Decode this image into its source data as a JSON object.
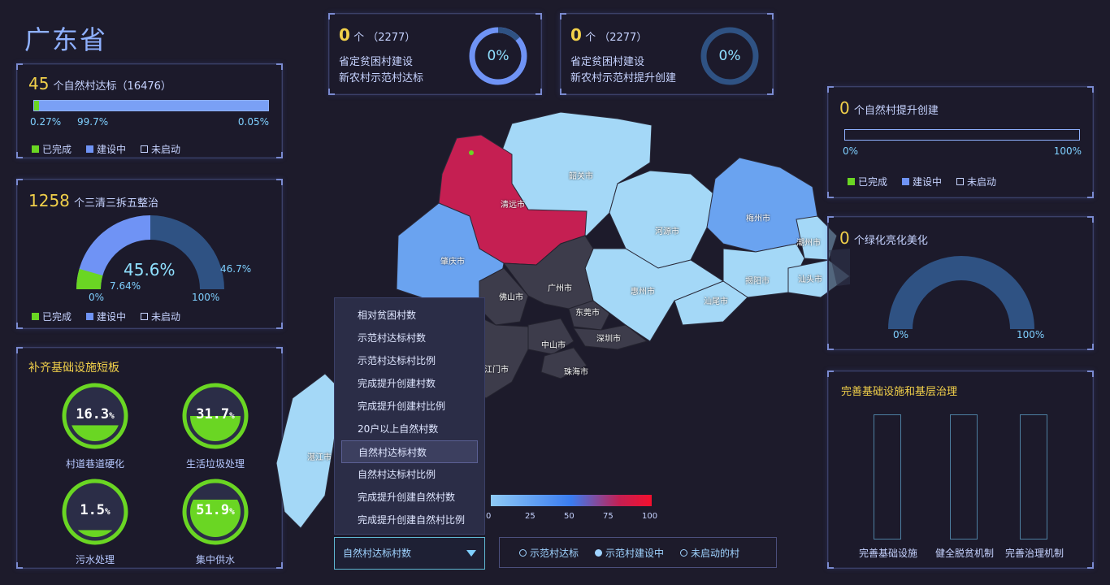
{
  "page": {
    "title": "广东省"
  },
  "top_cards": [
    {
      "count": "0",
      "unit": "个",
      "total": "（2277）",
      "line1": "省定贫困村建设",
      "line2": "新农村示范村达标",
      "percent": "0%"
    },
    {
      "count": "0",
      "unit": "个",
      "total": "（2277）",
      "line1": "省定贫困村建设",
      "line2": "新农村示范村提升创建",
      "percent": "0%"
    }
  ],
  "villages_standard": {
    "count": "45",
    "label": "个自然村达标（16476）",
    "pct_done": "0.27%",
    "pct_building": "99.7%",
    "pct_idle": "0.05%",
    "progress_done": 0.27,
    "progress_building": 99.7
  },
  "legend": {
    "done": "已完成",
    "building": "建设中",
    "idle": "未启动"
  },
  "renovation": {
    "count": "1258",
    "label": "个三清三拆五整治",
    "center_pct": "45.6%",
    "green_pct": "7.64%",
    "blue_pct": "46.7%",
    "min": "0%",
    "max": "100%"
  },
  "infrastructure": {
    "title": "补齐基础设施短板",
    "items": [
      {
        "value": "16.3",
        "unit": "%",
        "label": "村道巷道硬化",
        "level": 16.3
      },
      {
        "value": "31.7",
        "unit": "%",
        "label": "生活垃圾处理",
        "level": 31.7
      },
      {
        "value": "1.5",
        "unit": "%",
        "label": "污水处理",
        "level": 1.5
      },
      {
        "value": "51.9",
        "unit": "%",
        "label": "集中供水",
        "level": 51.9
      }
    ]
  },
  "upgrade": {
    "count": "0",
    "label": "个自然村提升创建",
    "min": "0%",
    "max": "100%"
  },
  "greening": {
    "count": "0",
    "label": "个绿化亮化美化",
    "min": "0%",
    "max": "100%"
  },
  "governance": {
    "title": "完善基础设施和基层治理",
    "bars": [
      "完善基础设施",
      "健全脱贫机制",
      "完善治理机制"
    ]
  },
  "map": {
    "cities": [
      "韶关市",
      "清远市",
      "河源市",
      "梅州市",
      "潮州市",
      "肇庆市",
      "广州市",
      "惠州市",
      "揭阳市",
      "汕头市",
      "佛山市",
      "东莞市",
      "汕尾市",
      "深圳市",
      "中山市",
      "江门市",
      "珠海市",
      "湛江市"
    ],
    "scale_ticks": [
      "0",
      "25",
      "50",
      "75",
      "100"
    ],
    "colors": {
      "high": "#c51f52",
      "mid": "#6aa3f0",
      "low": "#8fcaf5",
      "none": "#3d3c4b"
    }
  },
  "dropdown": {
    "options": [
      "相对贫困村数",
      "示范村达标村数",
      "示范村达标村比例",
      "完成提升创建村数",
      "完成提升创建村比例",
      "20户以上自然村数",
      "自然村达标村数",
      "自然村达标村比例",
      "完成提升创建自然村数",
      "完成提升创建自然村比例"
    ],
    "selected_index": 6,
    "selected": "自然村达标村数"
  },
  "bottom_legend": [
    "示范村达标",
    "示范村建设中",
    "未启动的村"
  ]
}
